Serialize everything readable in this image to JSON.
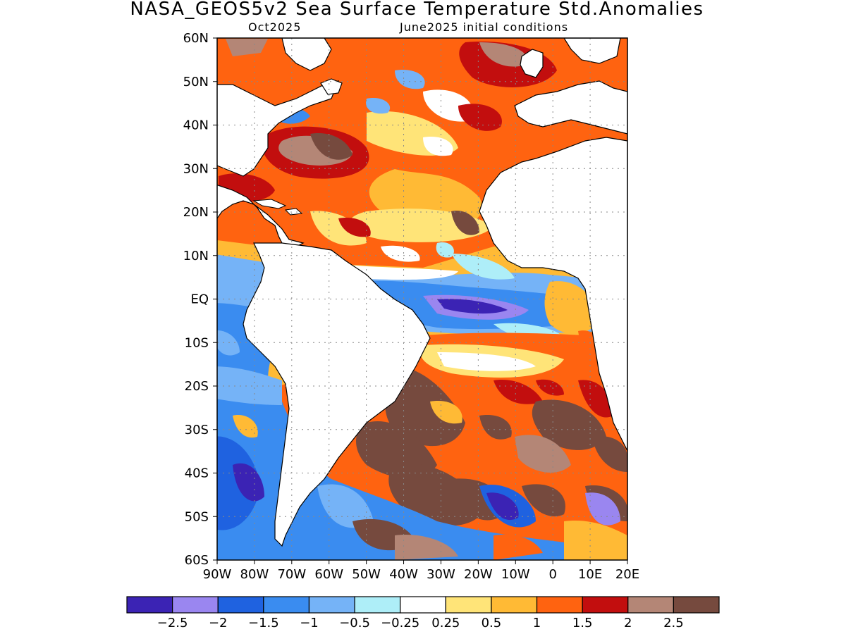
{
  "title": "NASA_GEOS5v2 Sea Surface Temperature Std.Anomalies",
  "valid_month": "Oct2025",
  "init_conditions": "June2025 initial conditions",
  "lat_labels": [
    "60N",
    "50N",
    "40N",
    "30N",
    "20N",
    "10N",
    "EQ",
    "10S",
    "20S",
    "30S",
    "40S",
    "50S",
    "60S"
  ],
  "lon_labels": [
    "90W",
    "80W",
    "70W",
    "60W",
    "50W",
    "40W",
    "30W",
    "20W",
    "10W",
    "0",
    "10E",
    "20E"
  ],
  "map_extent": {
    "lon_min": -90,
    "lon_max": 20,
    "lat_min": -60,
    "lat_max": 60
  },
  "colorbar": {
    "levels": [
      "−2.5",
      "−2",
      "−1.5",
      "−1",
      "−0.5",
      "−0.25",
      "0.25",
      "0.5",
      "1",
      "1.5",
      "2",
      "2.5"
    ],
    "colors": [
      "#3b23b4",
      "#9a86f0",
      "#1f62e0",
      "#3a8cf0",
      "#75b3f7",
      "#aeeef8",
      "#ffffff",
      "#ffe478",
      "#ffba35",
      "#ff6310",
      "#c20e0e",
      "#b48676",
      "#764a3e"
    ]
  },
  "land_color": "#ffffff",
  "coastline_color": "#000000",
  "grid_style": "dotted"
}
